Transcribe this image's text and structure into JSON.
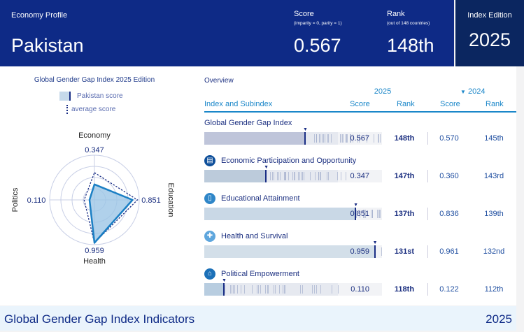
{
  "header": {
    "section": "Economy Profile",
    "country": "Pakistan",
    "score_label": "Score",
    "score_note": "(imparity = 0, parity = 1)",
    "score": "0.567",
    "rank_label": "Rank",
    "rank_note": "(out of 148 countries)",
    "rank": "148th",
    "edition_label": "Index Edition",
    "edition": "2025"
  },
  "radar": {
    "title": "Global Gender Gap Index 2025 Edition",
    "legend_country": "Pakistan score",
    "legend_avg": "average score",
    "axes": [
      {
        "name": "Economy",
        "value": 0.347,
        "label": "0.347",
        "average": 0.61
      },
      {
        "name": "Education",
        "value": 0.851,
        "label": "0.851",
        "average": 0.96
      },
      {
        "name": "Health",
        "value": 0.959,
        "label": "0.959",
        "average": 0.96
      },
      {
        "name": "Politics",
        "value": 0.11,
        "label": "0.110",
        "average": 0.23
      }
    ],
    "colors": {
      "fill": "#9cc6e6",
      "stroke": "#1b7fc4",
      "average": "#1a2e85"
    }
  },
  "overview": {
    "title": "Overview",
    "year_current": "2025",
    "year_prev": "2024",
    "col_index": "Index and Subindex",
    "col_score": "Score",
    "col_rank": "Rank",
    "col_score_prev": "Score",
    "col_rank_prev": "Rank",
    "rows": [
      {
        "name": "Global Gender Gap Index",
        "icon": "",
        "score": "0.567",
        "value": 0.567,
        "rank": "148th",
        "score_prev": "0.570",
        "rank_prev": "145th",
        "fill": "#bfc5da"
      },
      {
        "name": "Economic Participation and Opportunity",
        "icon": "economy-icon",
        "score": "0.347",
        "value": 0.347,
        "rank": "147th",
        "score_prev": "0.360",
        "rank_prev": "143rd",
        "fill": "#bccbdb"
      },
      {
        "name": "Educational Attainment",
        "icon": "book-icon",
        "score": "0.851",
        "value": 0.851,
        "rank": "137th",
        "score_prev": "0.836",
        "rank_prev": "139th",
        "fill": "#c9d8e6"
      },
      {
        "name": "Health and Survival",
        "icon": "health-cross-icon",
        "score": "0.959",
        "value": 0.959,
        "rank": "131st",
        "score_prev": "0.961",
        "rank_prev": "132nd",
        "fill": "#d3dfe9"
      },
      {
        "name": "Political Empowerment",
        "icon": "government-building-icon",
        "score": "0.110",
        "value": 0.11,
        "rank": "118th",
        "score_prev": "0.122",
        "rank_prev": "112th",
        "fill": "#b8cde0"
      }
    ]
  },
  "footer": {
    "title": "Global Gender Gap Index Indicators",
    "year": "2025"
  }
}
